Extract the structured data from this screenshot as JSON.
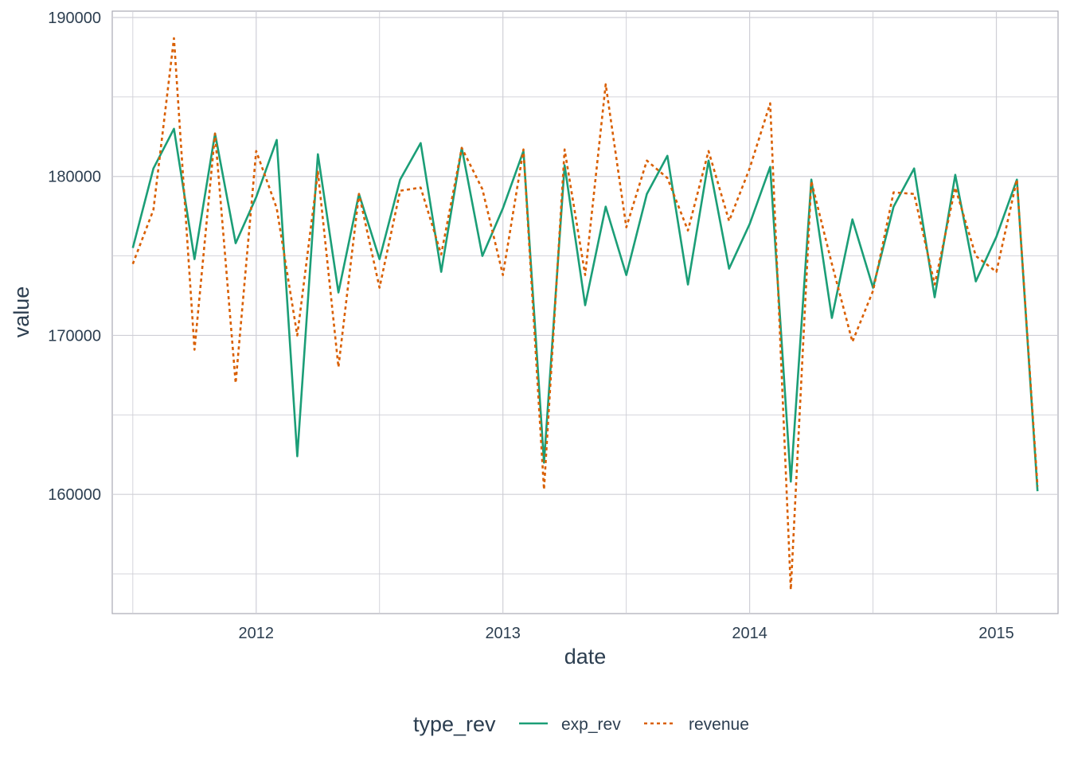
{
  "chart_data": {
    "type": "line",
    "xlabel": "date",
    "ylabel": "value",
    "x_ticks": [
      "2012",
      "2013",
      "2014",
      "2015"
    ],
    "y_ticks": [
      "160000",
      "170000",
      "180000",
      "190000"
    ],
    "xlim": [
      "2011-06-01",
      "2015-04-01"
    ],
    "ylim": [
      152500,
      190400
    ],
    "legend": {
      "title": "type_rev",
      "position": "bottom"
    },
    "grid": true,
    "x": [
      "2011-07",
      "2011-08",
      "2011-09",
      "2011-10",
      "2011-11",
      "2011-12",
      "2012-01",
      "2012-02",
      "2012-03",
      "2012-04",
      "2012-05",
      "2012-06",
      "2012-07",
      "2012-08",
      "2012-09",
      "2012-10",
      "2012-11",
      "2012-12",
      "2013-01",
      "2013-02",
      "2013-03",
      "2013-04",
      "2013-05",
      "2013-06",
      "2013-07",
      "2013-08",
      "2013-09",
      "2013-10",
      "2013-11",
      "2013-12",
      "2014-01",
      "2014-02",
      "2014-03",
      "2014-04",
      "2014-05",
      "2014-06",
      "2014-07",
      "2014-08",
      "2014-09",
      "2014-10",
      "2014-11",
      "2014-12",
      "2015-01",
      "2015-02",
      "2015-03"
    ],
    "series": [
      {
        "name": "exp_rev",
        "color": "#1b9e77",
        "dash": "solid",
        "values": [
          175500,
          180500,
          183000,
          174800,
          182700,
          175800,
          178700,
          182300,
          162400,
          181400,
          172700,
          178900,
          174800,
          179800,
          182100,
          174000,
          181800,
          175000,
          178000,
          181600,
          162000,
          180700,
          171900,
          178100,
          173800,
          178900,
          181300,
          173200,
          181000,
          174200,
          177000,
          180600,
          160800,
          179800,
          171100,
          177300,
          173000,
          178100,
          180500,
          172400,
          180100,
          173400,
          176200,
          179800,
          160200
        ]
      },
      {
        "name": "revenue",
        "color": "#d95f02",
        "dash": "dotted",
        "values": [
          174500,
          177900,
          188700,
          169100,
          182700,
          167000,
          181600,
          178000,
          170000,
          180300,
          168000,
          178900,
          173000,
          179100,
          179300,
          175100,
          181800,
          179200,
          173800,
          181700,
          160300,
          181700,
          173800,
          185800,
          176800,
          181000,
          179900,
          176600,
          181600,
          177200,
          180500,
          184600,
          154000,
          179700,
          174500,
          169600,
          172800,
          179000,
          178900,
          173200,
          179300,
          175000,
          174000,
          179800,
          160500
        ]
      }
    ]
  }
}
